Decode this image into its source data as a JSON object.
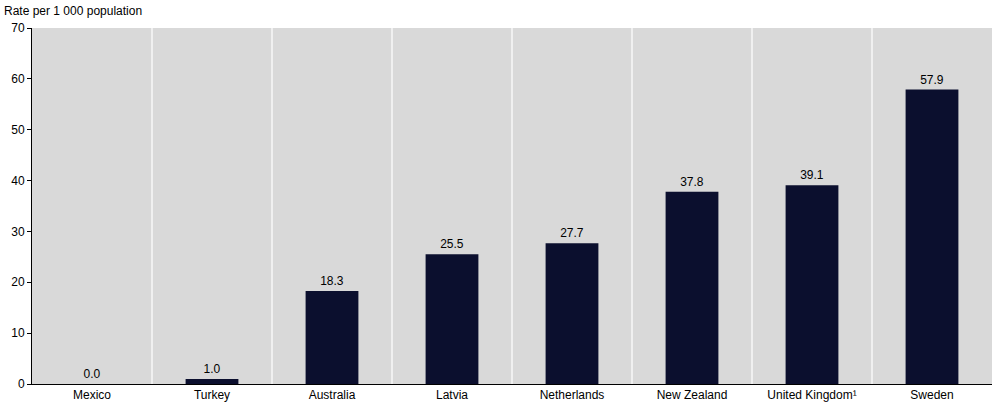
{
  "chart_data": {
    "type": "bar",
    "ylabel": "Rate per 1 000 population",
    "categories": [
      "Mexico",
      "Turkey",
      "Australia",
      "Latvia",
      "Netherlands",
      "New Zealand",
      "United Kingdom¹",
      "Sweden"
    ],
    "values": [
      0.0,
      1.0,
      18.3,
      25.5,
      27.7,
      37.8,
      39.1,
      57.9
    ],
    "value_labels": [
      "0.0",
      "1.0",
      "18.3",
      "25.5",
      "27.7",
      "37.8",
      "39.1",
      "57.9"
    ],
    "color": "#0b0f2e",
    "ylim": [
      0,
      70
    ],
    "yticks": [
      0,
      10,
      20,
      30,
      40,
      50,
      60,
      70
    ],
    "grid": true,
    "data_labels": true
  }
}
